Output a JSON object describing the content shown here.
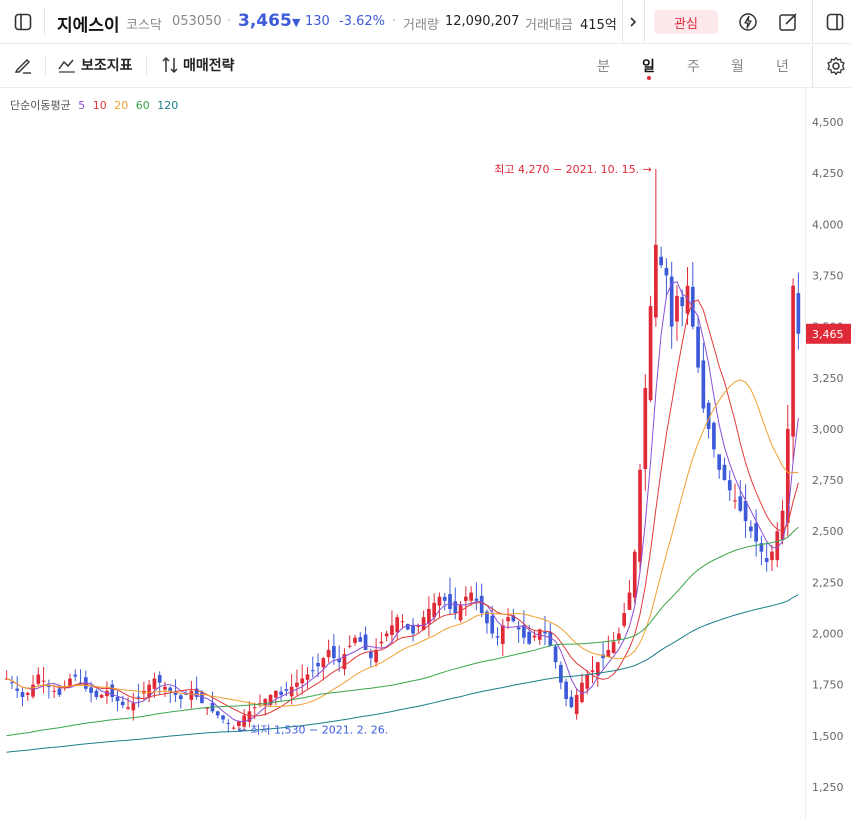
{
  "header": {
    "stock_name": "지에스이",
    "market": "코스닥",
    "code": "053050",
    "price": "3,465",
    "change_arrow": "▼",
    "change": "130",
    "change_pct": "-3.62%",
    "volume_label": "거래량",
    "volume": "12,090,207",
    "amount_label": "거래대금",
    "amount": "415억",
    "watch_label": "관심",
    "down_color": "#3d5bd9",
    "up_color": "#e02a38"
  },
  "toolbar": {
    "indicator_label": "보조지표",
    "strategy_label": "매매전략",
    "periods": [
      "분",
      "일",
      "주",
      "월",
      "년"
    ],
    "active_period": "일"
  },
  "ma_legend": {
    "title": "단순이동평균",
    "items": [
      {
        "label": "5",
        "color": "#8a4fd8"
      },
      {
        "label": "10",
        "color": "#e03a3a"
      },
      {
        "label": "20",
        "color": "#f0a030"
      },
      {
        "label": "60",
        "color": "#3aa64a"
      },
      {
        "label": "120",
        "color": "#1a7f8a"
      }
    ]
  },
  "chart_data": {
    "type": "candlestick",
    "ylim": [
      1150,
      4600
    ],
    "y_ticks": [
      "4,500",
      "4,250",
      "4,000",
      "3,750",
      "3,500",
      "3,250",
      "3,000",
      "2,750",
      "2,500",
      "2,250",
      "2,000",
      "1,750",
      "1,500",
      "1,250"
    ],
    "y_tick_values": [
      4500,
      4250,
      4000,
      3750,
      3500,
      3250,
      3000,
      2750,
      2500,
      2250,
      2000,
      1750,
      1500,
      1250
    ],
    "current_price": 3465,
    "current_price_label": "3,465",
    "high_annotation": "최고 4,270 − 2021. 10. 15.",
    "high_value": 4270,
    "low_annotation": "← 최저 1,530 − 2021. 2. 26.",
    "low_value": 1530,
    "close_series": [
      1780,
      1760,
      1720,
      1690,
      1710,
      1750,
      1800,
      1770,
      1740,
      1720,
      1700,
      1740,
      1780,
      1790,
      1760,
      1730,
      1710,
      1690,
      1700,
      1720,
      1690,
      1670,
      1650,
      1640,
      1660,
      1690,
      1720,
      1750,
      1780,
      1760,
      1740,
      1720,
      1700,
      1680,
      1700,
      1720,
      1690,
      1660,
      1640,
      1620,
      1600,
      1580,
      1560,
      1540,
      1570,
      1600,
      1620,
      1640,
      1660,
      1680,
      1700,
      1720,
      1700,
      1720,
      1740,
      1760,
      1780,
      1800,
      1820,
      1840,
      1880,
      1920,
      1880,
      1860,
      1900,
      1940,
      1980,
      1960,
      1920,
      1880,
      1920,
      1960,
      2000,
      2040,
      2080,
      2060,
      2020,
      2000,
      2040,
      2080,
      2120,
      2150,
      2180,
      2160,
      2120,
      2100,
      2140,
      2180,
      2200,
      2160,
      2100,
      2050,
      2000,
      1980,
      2040,
      2080,
      2060,
      2020,
      1980,
      1950,
      1990,
      2020,
      2000,
      1940,
      1860,
      1760,
      1680,
      1640,
      1700,
      1760,
      1800,
      1820,
      1860,
      1880,
      1920,
      1960,
      2000,
      2100,
      2200,
      2400,
      2800,
      3200,
      3600,
      3900,
      3800,
      3750,
      3500,
      3650,
      3600,
      3700,
      3500,
      3300,
      3100,
      3000,
      2900,
      2800,
      2750,
      2700,
      2650,
      2600,
      2550,
      2500,
      2450,
      2400,
      2350,
      2400,
      2500,
      2600,
      3000,
      3700,
      3465
    ],
    "ma_windows": [
      5,
      10,
      20,
      60,
      120
    ]
  }
}
